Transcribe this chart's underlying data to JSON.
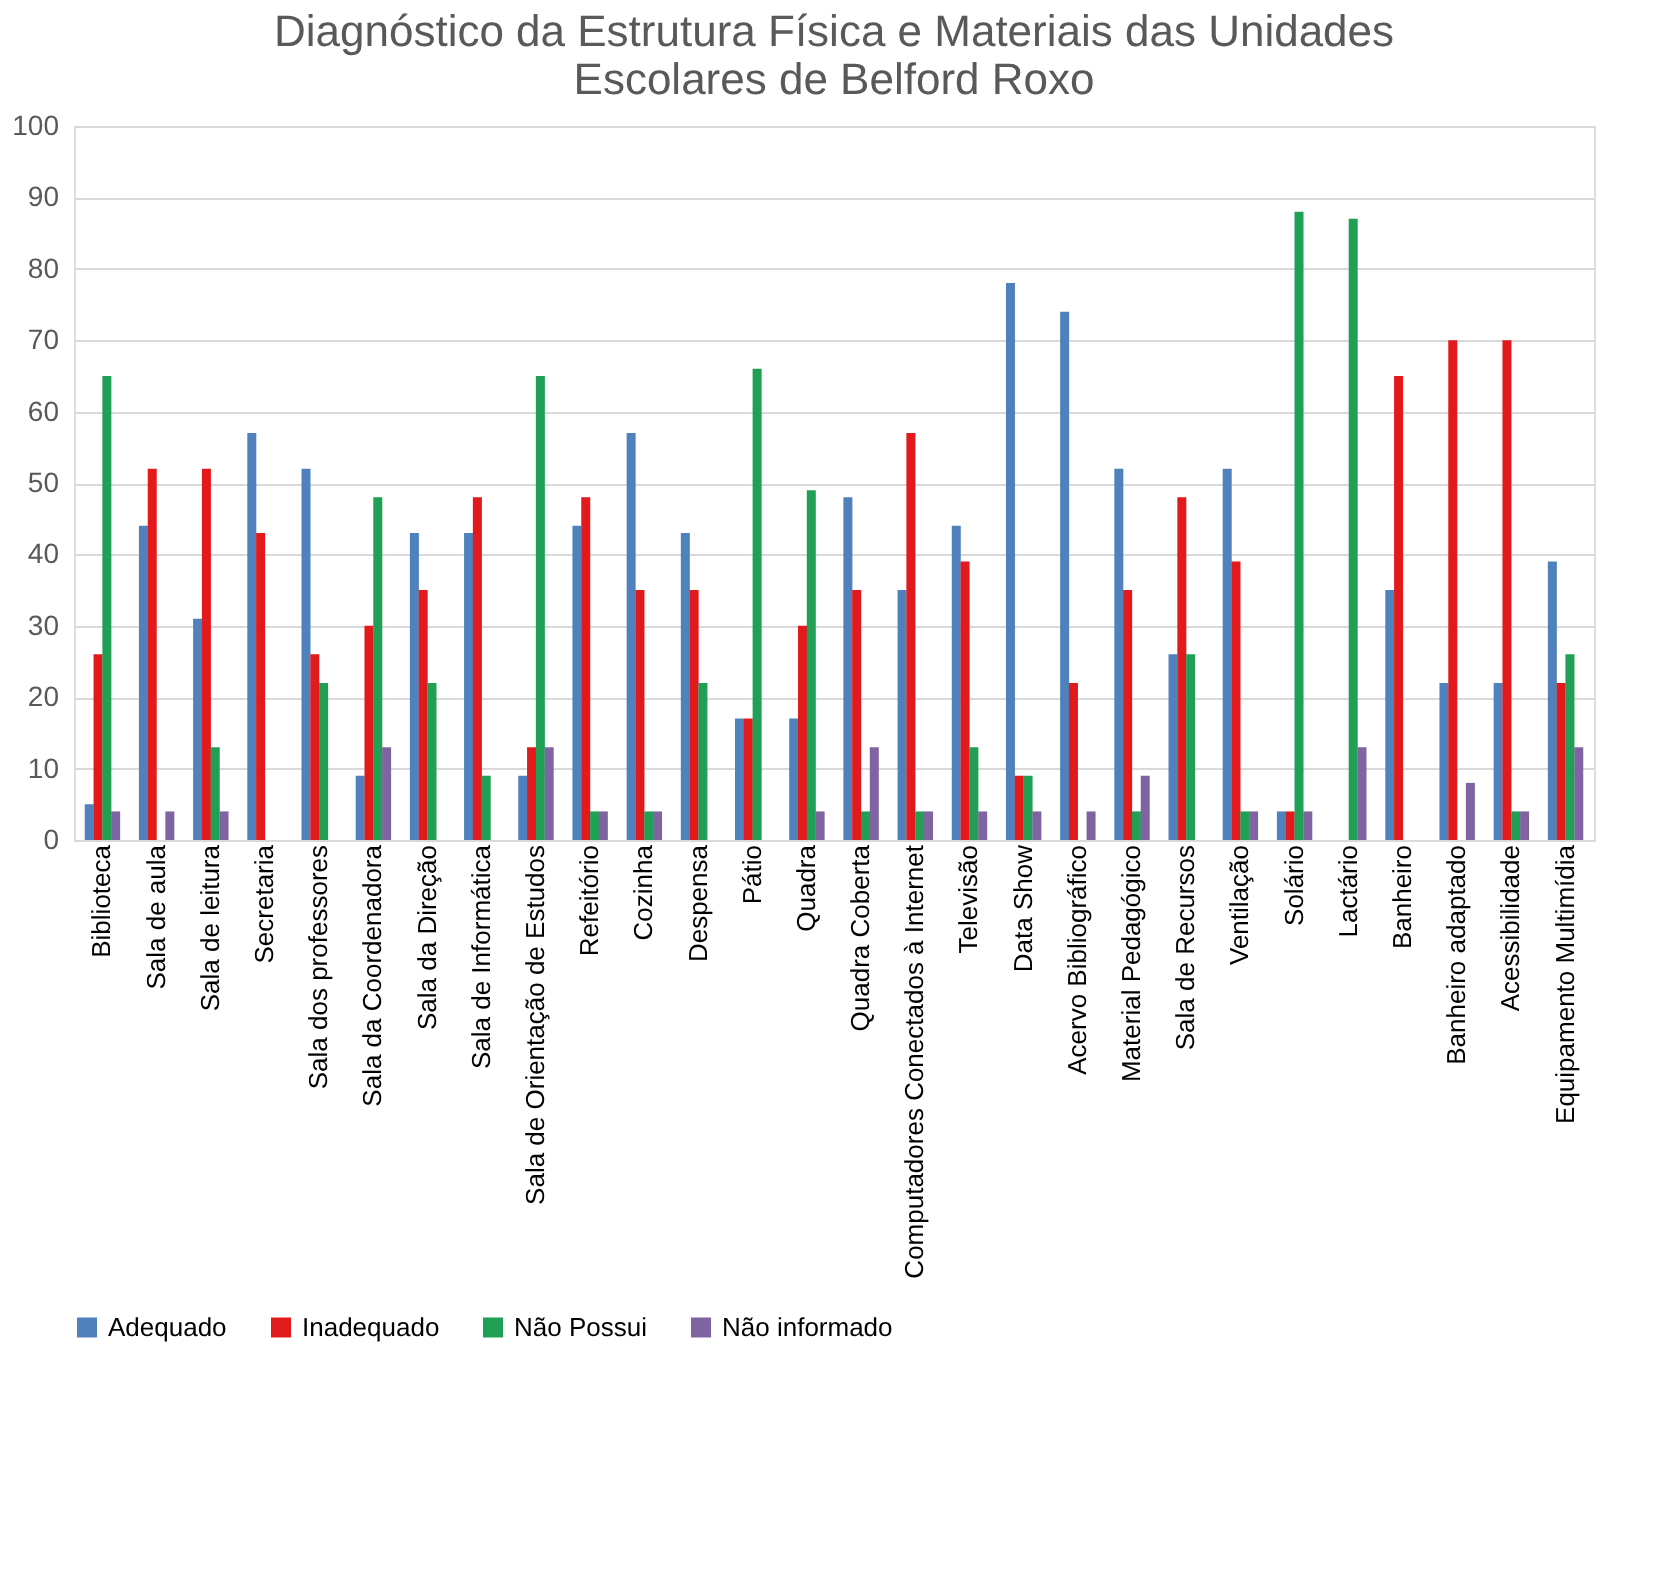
{
  "chart_data": {
    "type": "bar",
    "title": [
      "Diagnóstico da Estrutura Física e Materiais das Unidades",
      "Escolares de Belford Roxo"
    ],
    "categories": [
      "Biblioteca",
      "Sala de aula",
      "Sala de leitura",
      "Secretaria",
      "Sala dos professores",
      "Sala da Coordenadora",
      "Sala da Direção",
      "Sala de Informática",
      "Sala de Orientação de Estudos",
      "Refeitório",
      "Cozinha",
      "Despensa",
      "Pátio",
      "Quadra",
      "Quadra Coberta",
      "Computadores Conectados à Internet",
      "Televisão",
      "Data Show",
      "Acervo Bibliográfico",
      "Material Pedagógico",
      "Sala de Recursos",
      "Ventilação",
      "Solário",
      "Lactário",
      "Banheiro",
      "Banheiro adaptado",
      "Acessibilidade",
      "Equipamento Multimídia"
    ],
    "series": [
      {
        "name": "Adequado",
        "color": "#4f81bd",
        "values": [
          5,
          44,
          31,
          57,
          52,
          9,
          43,
          43,
          9,
          44,
          57,
          43,
          17,
          17,
          48,
          35,
          44,
          78,
          74,
          52,
          26,
          52,
          4,
          0,
          35,
          22,
          22,
          39
        ]
      },
      {
        "name": "Inadequado",
        "color": "#e31a1c",
        "values": [
          26,
          52,
          52,
          43,
          26,
          30,
          35,
          48,
          13,
          48,
          35,
          35,
          17,
          30,
          35,
          57,
          39,
          9,
          22,
          35,
          48,
          39,
          4,
          0,
          65,
          70,
          70,
          22
        ]
      },
      {
        "name": "Não Possui",
        "color": "#1fa055",
        "values": [
          65,
          0,
          13,
          0,
          22,
          48,
          22,
          9,
          65,
          4,
          4,
          22,
          66,
          49,
          4,
          4,
          13,
          9,
          0,
          4,
          26,
          4,
          88,
          87,
          0,
          0,
          4,
          26
        ]
      },
      {
        "name": "Não informado",
        "color": "#8064a2",
        "values": [
          4,
          4,
          4,
          0,
          0,
          13,
          0,
          0,
          13,
          4,
          4,
          0,
          0,
          4,
          13,
          4,
          4,
          4,
          4,
          9,
          0,
          4,
          4,
          13,
          0,
          8,
          4,
          13
        ]
      }
    ],
    "ylim": [
      0,
      100
    ],
    "yticks": [
      0,
      10,
      20,
      30,
      40,
      50,
      60,
      70,
      80,
      90,
      100
    ],
    "grid": "y",
    "legend": "bottom"
  }
}
